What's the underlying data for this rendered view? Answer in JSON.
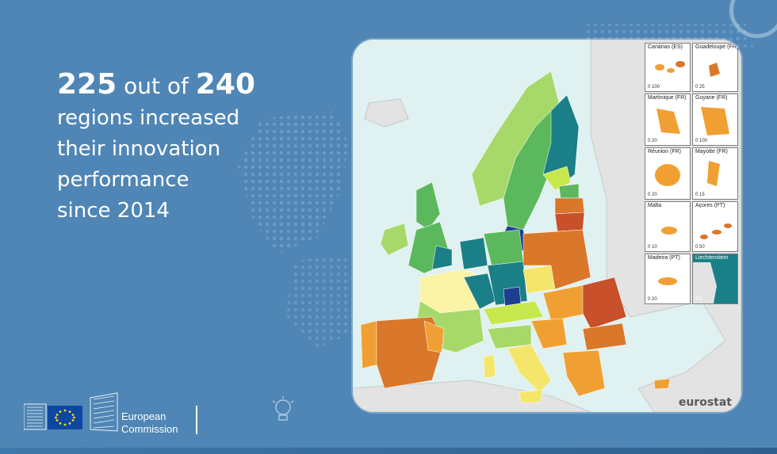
{
  "headline": {
    "count": "225",
    "out_of": "out of",
    "total": "240",
    "line2": "regions increased",
    "line3": "their innovation",
    "line4": "performance",
    "line5": "since 2014"
  },
  "map": {
    "source": "eurostat",
    "insets": [
      {
        "label": "Canarias (ES)",
        "scale": "0   100"
      },
      {
        "label": "Guadeloupe (FR)",
        "scale": "0   25"
      },
      {
        "label": "Martinique (FR)",
        "scale": "0   20"
      },
      {
        "label": "Guyane (FR)",
        "scale": "0   100"
      },
      {
        "label": "Réunion (FR)",
        "scale": "0   20"
      },
      {
        "label": "Mayotte (FR)",
        "scale": "0   15"
      },
      {
        "label": "Malta",
        "scale": "0   10"
      },
      {
        "label": "Açores (PT)",
        "scale": "0   50"
      },
      {
        "label": "Madeira (PT)",
        "scale": "0   20"
      },
      {
        "label": "Liechtenstein",
        "scale": "0   5"
      }
    ],
    "colors": {
      "sea": "#dff1f0",
      "non_eu": "#e3e3e3",
      "dark_blue": "#1d3f8f",
      "teal": "#1a7f86",
      "green": "#5cb85c",
      "light_green": "#a6d96a",
      "lime": "#c7e84d",
      "yellow": "#f4e66a",
      "pale_yellow": "#fbf3a6",
      "orange": "#f0a033",
      "dark_orange": "#d9772a",
      "red_orange": "#c8502a"
    }
  },
  "logo": {
    "line1": "European",
    "line2": "Commission"
  }
}
